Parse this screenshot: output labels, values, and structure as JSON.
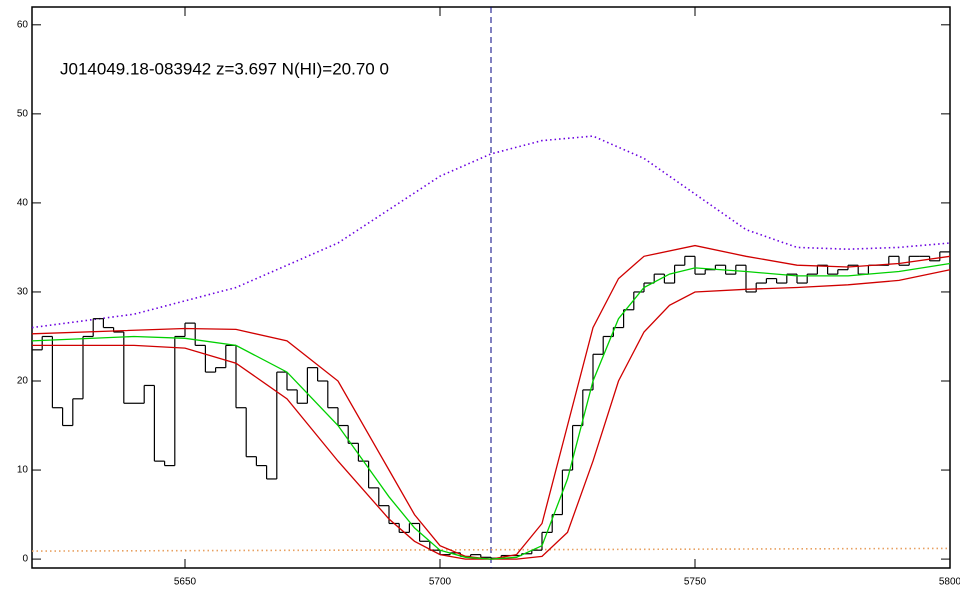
{
  "chart_data": {
    "type": "line",
    "title": "J014049.18-083942 z=3.697 N(HI)=20.70 0",
    "xlim": [
      5620,
      5800
    ],
    "ylim": [
      -1,
      62
    ],
    "xticks": [
      5650,
      5700,
      5750,
      5800
    ],
    "yticks": [
      0,
      10,
      20,
      30,
      40,
      50,
      60
    ],
    "vline": {
      "x": 5710,
      "color": "#000080",
      "style": "dashed"
    },
    "series": [
      {
        "color": "#6a00e0",
        "style": "dotted",
        "x": [
          5620,
          5640,
          5660,
          5680,
          5700,
          5710,
          5720,
          5730,
          5740,
          5750,
          5760,
          5770,
          5780,
          5790,
          5800
        ],
        "values": [
          26,
          27.5,
          30.5,
          35.5,
          43,
          45.5,
          47,
          47.5,
          45,
          41,
          37,
          35,
          34.8,
          35,
          35.5
        ]
      },
      {
        "color": "#e8a060",
        "style": "dotted",
        "x": [
          5620,
          5800
        ],
        "values": [
          0.9,
          1.2
        ]
      },
      {
        "color": "#000000",
        "style": "step",
        "x": [
          5620,
          5622,
          5624,
          5626,
          5628,
          5630,
          5632,
          5634,
          5636,
          5638,
          5640,
          5642,
          5644,
          5646,
          5648,
          5650,
          5652,
          5654,
          5656,
          5658,
          5660,
          5662,
          5664,
          5666,
          5668,
          5670,
          5672,
          5674,
          5676,
          5678,
          5680,
          5682,
          5684,
          5686,
          5688,
          5690,
          5692,
          5694,
          5696,
          5698,
          5700,
          5702,
          5704,
          5706,
          5708,
          5710,
          5712,
          5714,
          5716,
          5718,
          5720,
          5722,
          5724,
          5726,
          5728,
          5730,
          5732,
          5734,
          5736,
          5738,
          5740,
          5742,
          5744,
          5746,
          5748,
          5750,
          5752,
          5754,
          5756,
          5758,
          5760,
          5762,
          5764,
          5766,
          5768,
          5770,
          5772,
          5774,
          5776,
          5778,
          5780,
          5782,
          5784,
          5786,
          5788,
          5790,
          5792,
          5794,
          5796,
          5798
        ],
        "values": [
          23.5,
          25,
          17,
          15,
          18,
          25,
          27,
          26,
          25.5,
          17.5,
          17.5,
          19.5,
          11,
          10.5,
          25,
          26.5,
          24,
          21,
          21.5,
          24,
          17,
          11.5,
          10.5,
          9,
          21,
          19,
          17.5,
          21.5,
          20,
          17,
          15,
          13,
          11,
          8,
          6,
          4,
          3,
          4,
          2,
          1,
          0.5,
          0.7,
          0.3,
          0.5,
          0.2,
          0.1,
          0.4,
          0.4,
          0.6,
          1,
          3,
          5,
          10,
          15,
          19,
          23,
          25,
          26,
          28,
          30,
          31,
          32,
          31,
          33,
          34,
          32,
          32.5,
          33,
          32,
          33,
          30,
          31,
          31.5,
          31,
          32,
          31,
          32,
          33,
          32,
          32.5,
          33,
          32,
          33,
          33,
          34,
          33,
          34,
          34,
          33.5,
          34.5
        ]
      },
      {
        "color": "#d00000",
        "style": "solid",
        "x": [
          5620,
          5650,
          5660,
          5670,
          5680,
          5690,
          5695,
          5700,
          5705,
          5710,
          5715,
          5720,
          5725,
          5730,
          5735,
          5740,
          5750,
          5760,
          5770,
          5780,
          5790,
          5800
        ],
        "values": [
          25.3,
          25.9,
          25.8,
          24.5,
          20,
          10,
          5,
          1.5,
          0.3,
          0,
          0.5,
          4,
          15,
          26,
          31.5,
          34,
          35.2,
          34,
          33,
          32.8,
          33.2,
          34
        ]
      },
      {
        "color": "#d00000",
        "style": "solid",
        "x": [
          5620,
          5640,
          5650,
          5660,
          5670,
          5680,
          5690,
          5695,
          5700,
          5705,
          5710,
          5715,
          5720,
          5725,
          5730,
          5735,
          5740,
          5745,
          5750,
          5760,
          5770,
          5780,
          5790,
          5800
        ],
        "values": [
          24,
          24,
          23.7,
          22,
          18,
          11,
          4.5,
          2,
          0.5,
          0,
          0,
          0,
          0.3,
          3,
          11,
          20,
          25.5,
          28.5,
          30,
          30.3,
          30.5,
          30.8,
          31.3,
          32.5
        ]
      },
      {
        "color": "#00d000",
        "style": "solid",
        "x": [
          5620,
          5640,
          5650,
          5660,
          5670,
          5680,
          5690,
          5695,
          5700,
          5705,
          5710,
          5715,
          5720,
          5725,
          5730,
          5735,
          5740,
          5745,
          5750,
          5760,
          5770,
          5780,
          5790,
          5800
        ],
        "values": [
          24.5,
          25,
          24.8,
          24,
          21,
          15,
          7,
          3.5,
          1,
          0.2,
          0,
          0.2,
          1.5,
          9,
          20,
          27,
          30.5,
          32,
          32.7,
          32.3,
          31.8,
          31.8,
          32.3,
          33.2
        ]
      }
    ]
  }
}
